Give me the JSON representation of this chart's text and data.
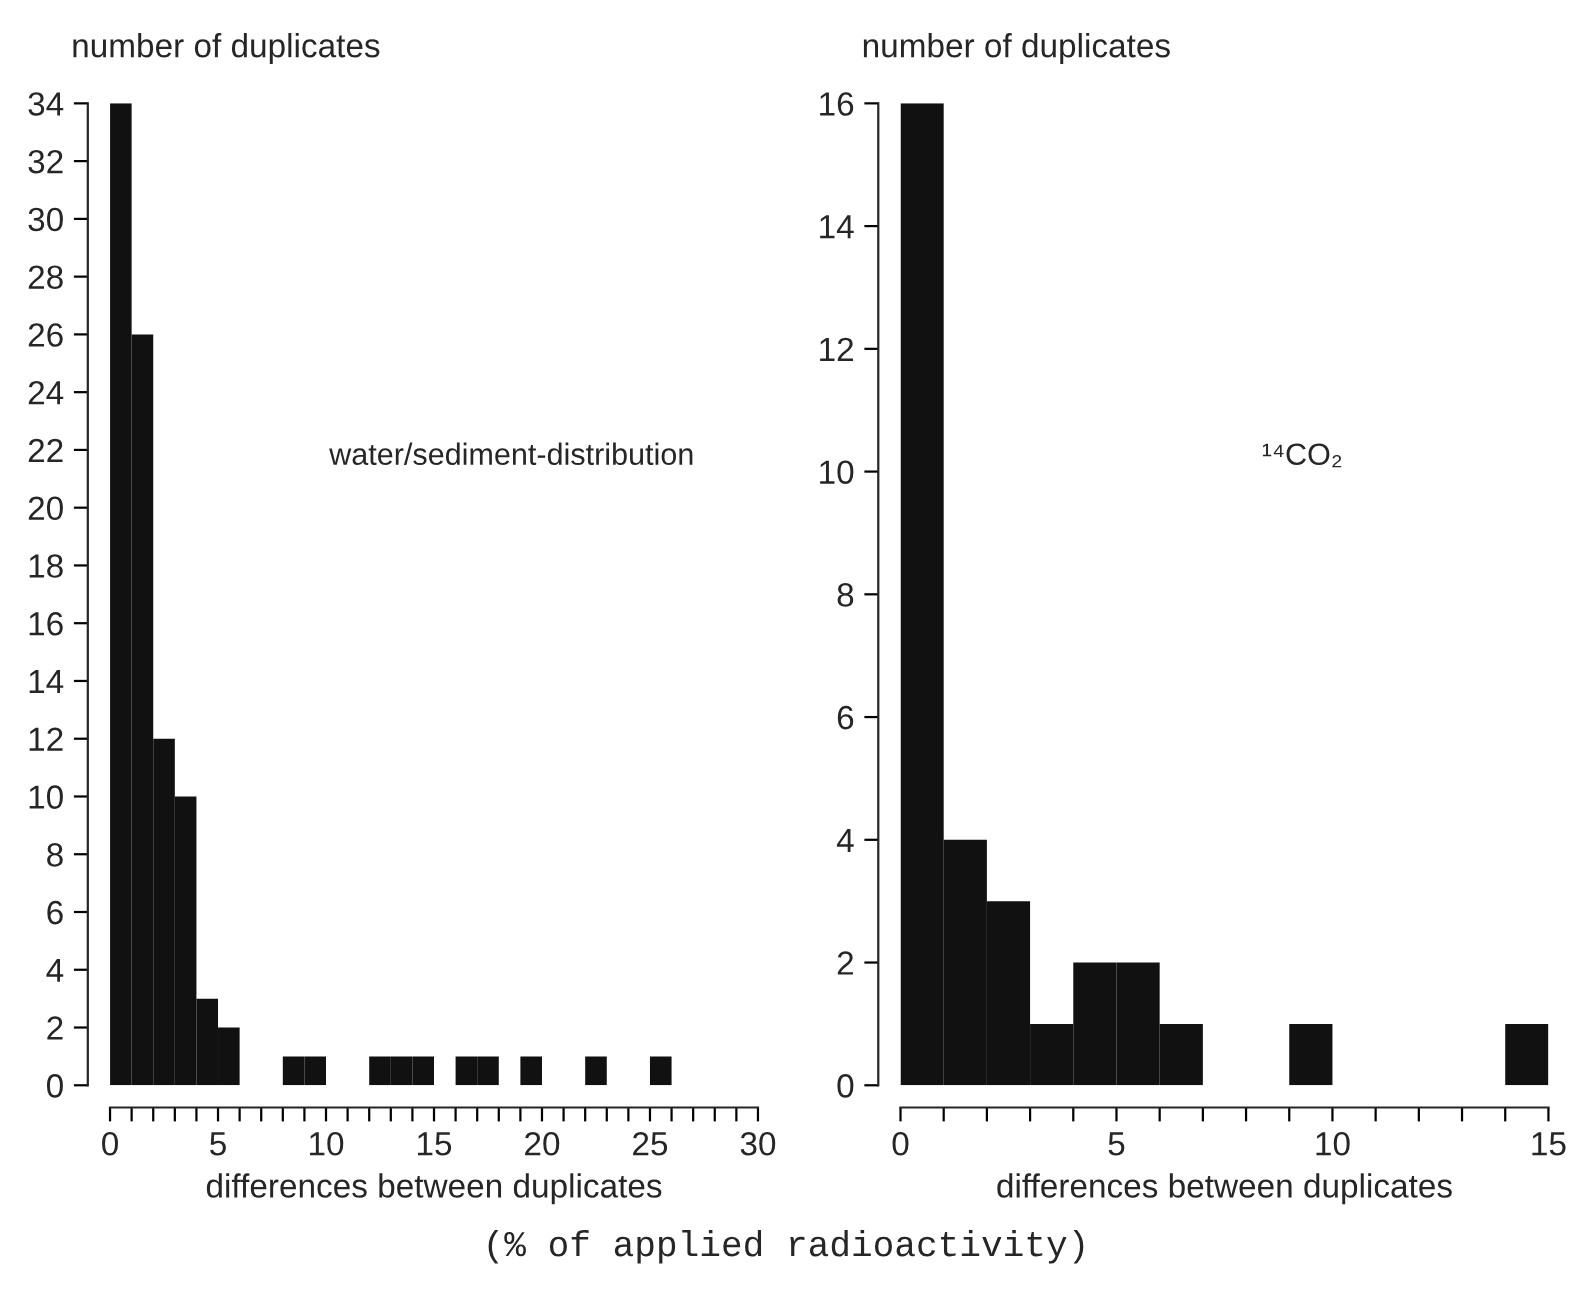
{
  "chart_data": [
    {
      "type": "histogram",
      "ylabel": "number of duplicates",
      "xlabel": "differences between duplicates",
      "annotations": [
        "water/sediment-distribution"
      ],
      "color": "#111111",
      "bins": [
        0,
        1,
        2,
        3,
        4,
        5,
        6,
        7,
        8,
        9,
        10,
        11,
        12,
        13,
        14,
        15,
        16,
        17,
        18,
        19,
        20,
        21,
        22,
        23,
        24,
        25,
        26
      ],
      "values": [
        34,
        26,
        12,
        10,
        3,
        2,
        0,
        0,
        1,
        1,
        0,
        0,
        1,
        1,
        1,
        0,
        1,
        1,
        0,
        1,
        0,
        0,
        1,
        0,
        0,
        1
      ],
      "xlim": [
        0,
        30
      ],
      "ylim": [
        0,
        34
      ],
      "xticks": [
        0,
        {
          "value": 1,
          "label": null
        },
        {
          "value": 2,
          "label": null
        },
        {
          "value": 3,
          "label": null
        },
        {
          "value": 4,
          "label": null
        },
        5,
        {
          "value": 6,
          "label": null
        },
        {
          "value": 7,
          "label": null
        },
        {
          "value": 8,
          "label": null
        },
        {
          "value": 9,
          "label": null
        },
        10,
        {
          "value": 11,
          "label": null
        },
        {
          "value": 12,
          "label": null
        },
        {
          "value": 13,
          "label": null
        },
        {
          "value": 14,
          "label": null
        },
        15,
        {
          "value": 16,
          "label": null
        },
        {
          "value": 17,
          "label": null
        },
        {
          "value": 18,
          "label": null
        },
        {
          "value": 19,
          "label": null
        },
        20,
        {
          "value": 21,
          "label": null
        },
        {
          "value": 22,
          "label": null
        },
        {
          "value": 23,
          "label": null
        },
        {
          "value": 24,
          "label": null
        },
        25,
        {
          "value": 26,
          "label": null
        },
        {
          "value": 27,
          "label": null
        },
        {
          "value": 28,
          "label": null
        },
        {
          "value": 29,
          "label": null
        },
        30
      ],
      "yticks": [
        0,
        2,
        4,
        6,
        8,
        10,
        12,
        14,
        16,
        18,
        20,
        22,
        24,
        26,
        28,
        30,
        32,
        34
      ],
      "grid": false,
      "legend": false
    },
    {
      "type": "histogram",
      "ylabel": "number of duplicates",
      "xlabel": "differences between duplicates",
      "annotations": [
        "¹⁴CO₂",
        "(% of applied radioactivity)"
      ],
      "color": "#111111",
      "bins": [
        0,
        1,
        2,
        3,
        4,
        5,
        6,
        7,
        8,
        9,
        10,
        11,
        12,
        13,
        14,
        15
      ],
      "values": [
        16,
        4,
        3,
        1,
        2,
        2,
        1,
        0,
        0,
        1,
        0,
        0,
        0,
        0,
        1
      ],
      "xlim": [
        0,
        15
      ],
      "ylim": [
        0,
        16
      ],
      "xticks": [
        0,
        {
          "value": 1,
          "label": null
        },
        {
          "value": 2,
          "label": null
        },
        {
          "value": 3,
          "label": null
        },
        {
          "value": 4,
          "label": null
        },
        5,
        {
          "value": 6,
          "label": null
        },
        {
          "value": 7,
          "label": null
        },
        {
          "value": 8,
          "label": null
        },
        {
          "value": 9,
          "label": null
        },
        10,
        {
          "value": 11,
          "label": null
        },
        {
          "value": 12,
          "label": null
        },
        {
          "value": 13,
          "label": null
        },
        {
          "value": 14,
          "label": null
        },
        15
      ],
      "yticks": [
        0,
        2,
        4,
        6,
        8,
        10,
        12,
        14,
        16
      ],
      "grid": false,
      "legend": false
    }
  ]
}
